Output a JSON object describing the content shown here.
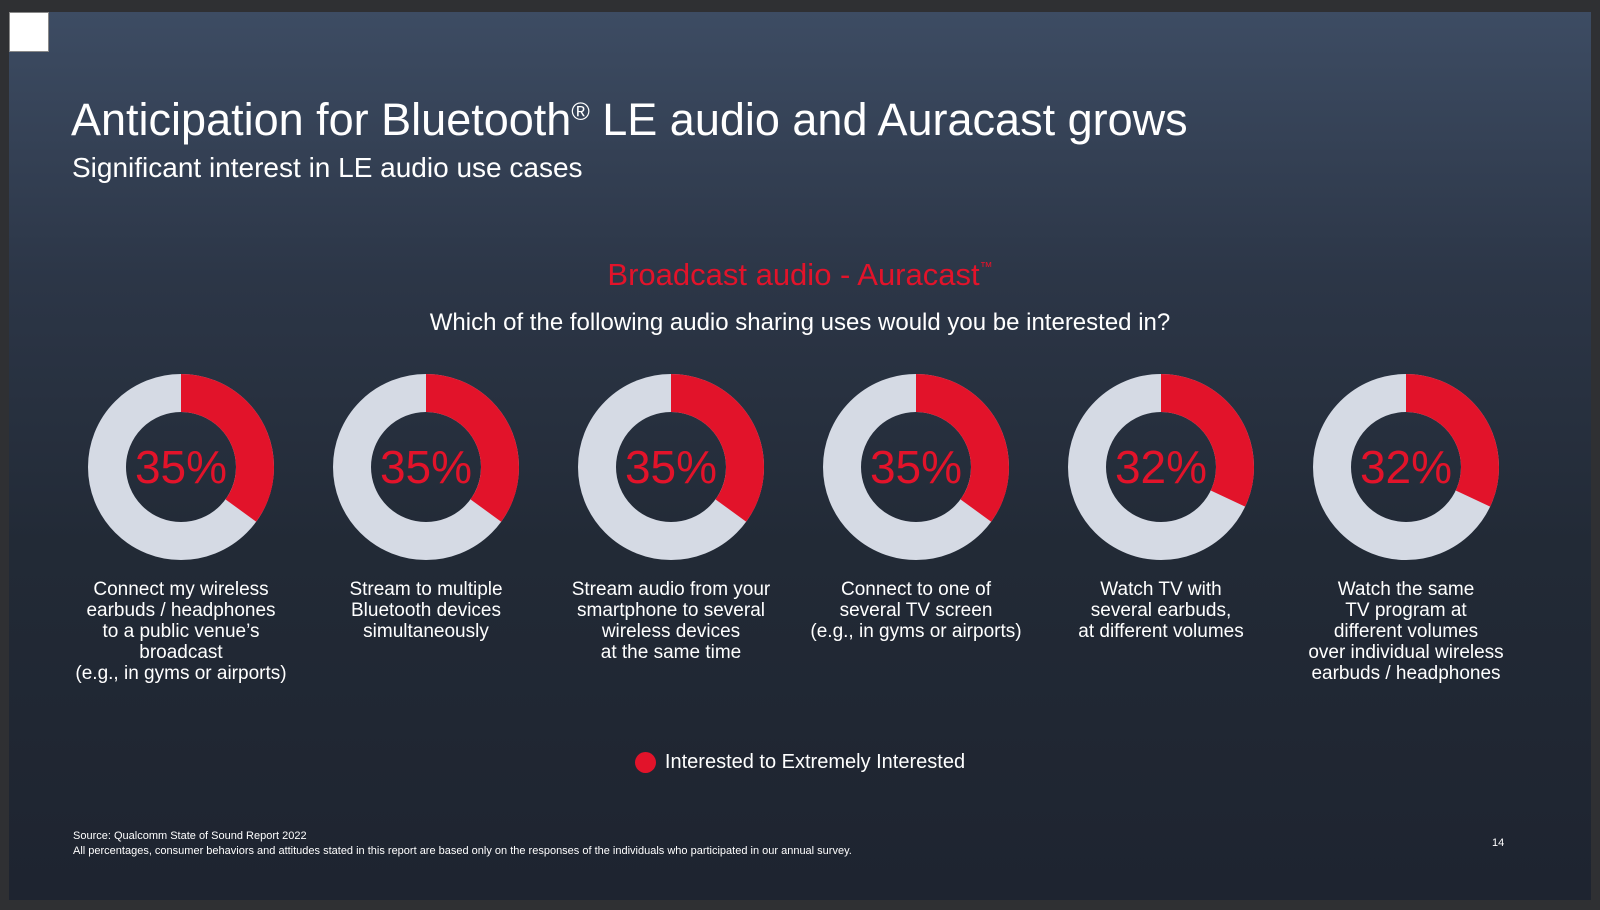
{
  "title": "Anticipation for Bluetooth",
  "title_registered": "®",
  "title_rest": " LE audio and Auracast grows",
  "subtitle": "Significant interest in LE audio use cases",
  "section_title": "Broadcast audio - Auracast",
  "section_tm": "™",
  "question": "Which of the following audio sharing uses would you be interested in?",
  "colors": {
    "interested": "#e2132a",
    "remainder": "#d5dae4",
    "background": "#1e2430"
  },
  "chart_data": {
    "type": "donut",
    "title": "Broadcast audio - Auracast™",
    "subtitle": "Which of the following audio sharing uses would you be interested in?",
    "series_name": "Interested to Extremely Interested",
    "items": [
      {
        "label": "Connect my wireless\nearbuds / headphones\nto a public venue’s\nbroadcast\n(e.g., in gyms or airports)",
        "value": 35,
        "value_label": "35%"
      },
      {
        "label": "Stream to multiple\nBluetooth devices\nsimultaneously",
        "value": 35,
        "value_label": "35%"
      },
      {
        "label": "Stream audio from your\nsmartphone to several\nwireless devices\nat the same time",
        "value": 35,
        "value_label": "35%"
      },
      {
        "label": "Connect to one of\nseveral TV screen\n(e.g., in gyms or airports)",
        "value": 35,
        "value_label": "35%"
      },
      {
        "label": "Watch TV with\nseveral earbuds,\nat different volumes",
        "value": 32,
        "value_label": "32%"
      },
      {
        "label": "Watch the same\nTV program at\ndifferent volumes\nover individual wireless\nearbuds / headphones",
        "value": 32,
        "value_label": "32%"
      }
    ]
  },
  "legend": {
    "label": "Interested to Extremely Interested"
  },
  "source": {
    "line1": "Source: Qualcomm State of Sound Report 2022",
    "line2": "All percentages, consumer behaviors and attitudes stated in this report are based only on the responses of the individuals who participated in our annual survey."
  },
  "page_number": "14"
}
